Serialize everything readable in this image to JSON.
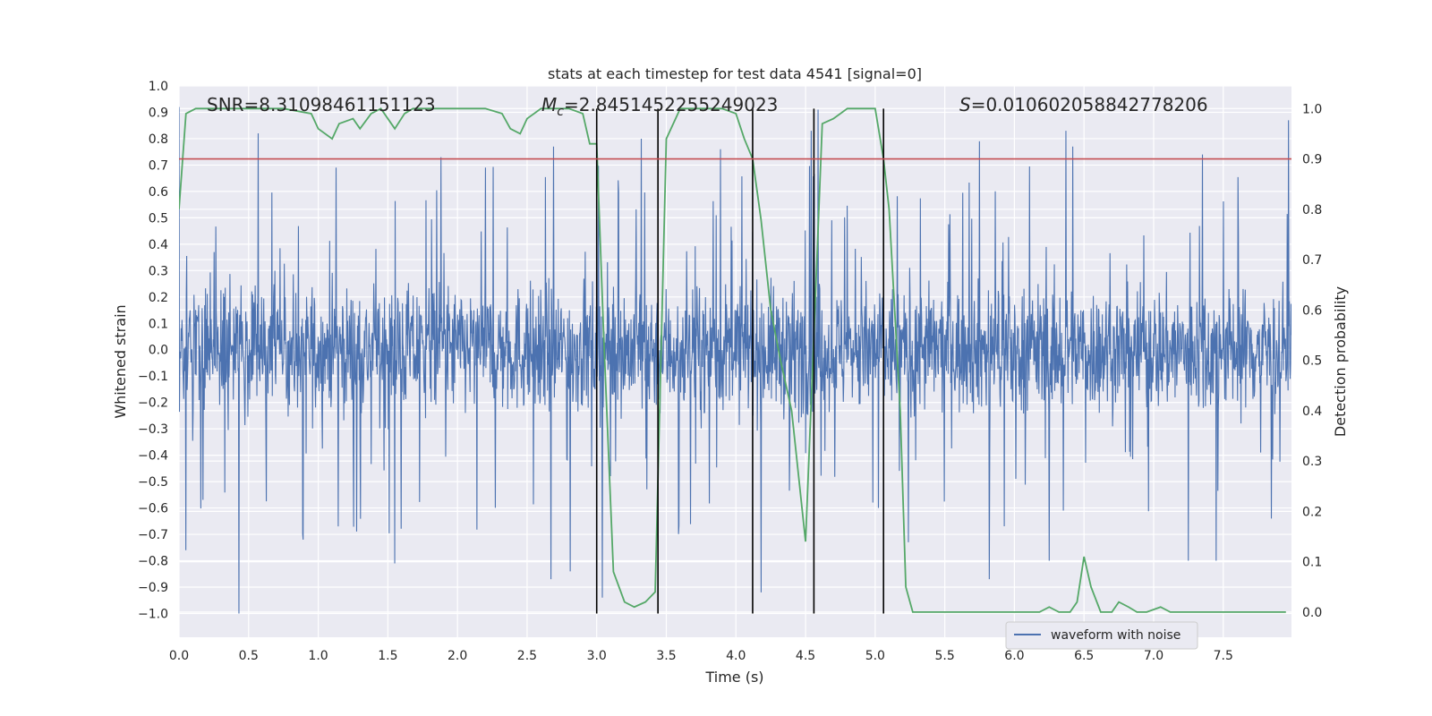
{
  "chart_data": {
    "type": "line",
    "title": "stats at each timestep for test data 4541 [signal=0]",
    "xlabel": "Time (s)",
    "ylabel_left": "Whitened strain",
    "ylabel_right": "Detection probability",
    "xlim": [
      0,
      7.99
    ],
    "ylim_left": [
      -1.09,
      1.0
    ],
    "ylim_right": [
      -0.05,
      1.045
    ],
    "xticks": [
      "0.0",
      "0.5",
      "1.0",
      "1.5",
      "2.0",
      "2.5",
      "3.0",
      "3.5",
      "4.0",
      "4.5",
      "5.0",
      "5.5",
      "6.0",
      "6.5",
      "7.0",
      "7.5"
    ],
    "xtick_values": [
      0,
      0.5,
      1,
      1.5,
      2,
      2.5,
      3,
      3.5,
      4,
      4.5,
      5,
      5.5,
      6,
      6.5,
      7,
      7.5
    ],
    "yticks_left": [
      "1.0",
      "0.9",
      "0.8",
      "0.7",
      "0.6",
      "0.5",
      "0.4",
      "0.3",
      "0.2",
      "0.1",
      "0.0",
      "−0.1",
      "−0.2",
      "−0.3",
      "−0.4",
      "−0.5",
      "−0.6",
      "−0.7",
      "−0.8",
      "−0.9",
      "−1.0"
    ],
    "ytick_values_left": [
      1.0,
      0.9,
      0.8,
      0.7,
      0.6,
      0.5,
      0.4,
      0.3,
      0.2,
      0.1,
      0.0,
      -0.1,
      -0.2,
      -0.3,
      -0.4,
      -0.5,
      -0.6,
      -0.7,
      -0.8,
      -0.9,
      -1.0
    ],
    "yticks_right": [
      "1.0",
      "0.9",
      "0.8",
      "0.7",
      "0.6",
      "0.5",
      "0.4",
      "0.3",
      "0.2",
      "0.1",
      "0.0"
    ],
    "ytick_values_right": [
      1.0,
      0.9,
      0.8,
      0.7,
      0.6,
      0.5,
      0.4,
      0.3,
      0.2,
      0.1,
      0.0
    ],
    "annotations": {
      "snr": "SNR=8.31098461151123",
      "mc_prefix": "M",
      "mc_sub": "c",
      "mc_value": "=2.8451452255249023",
      "s_prefix": "S",
      "s_value": "=0.010602058842778206"
    },
    "legend": {
      "entries": [
        "waveform with noise"
      ],
      "placement": "lower-right"
    },
    "threshold_line": {
      "value": 0.9,
      "axis": "right",
      "color": "#c44e52"
    },
    "vertical_lines": [
      3.0,
      3.44,
      4.12,
      4.56,
      5.06
    ],
    "waveform": {
      "name": "waveform with noise",
      "color": "#4c72b0",
      "samples_shown": "dense noise, approx. ±0.3 core with spikes up to ±1.0",
      "peaks_up": [
        [
          0.0,
          0.92
        ],
        [
          0.43,
          0.73
        ],
        [
          0.57,
          0.82
        ],
        [
          1.88,
          0.73
        ],
        [
          2.69,
          0.77
        ],
        [
          3.32,
          0.8
        ],
        [
          3.89,
          0.76
        ],
        [
          4.54,
          0.83
        ],
        [
          4.59,
          0.91
        ],
        [
          5.75,
          0.79
        ],
        [
          6.37,
          0.83
        ],
        [
          6.42,
          0.77
        ],
        [
          7.35,
          0.74
        ],
        [
          7.97,
          0.87
        ]
      ],
      "peaks_down": [
        [
          0.05,
          -0.76
        ],
        [
          0.43,
          -1.0
        ],
        [
          0.89,
          -0.72
        ],
        [
          1.55,
          -0.81
        ],
        [
          2.67,
          -0.87
        ],
        [
          2.81,
          -0.84
        ],
        [
          3.04,
          -0.94
        ],
        [
          4.18,
          -0.92
        ],
        [
          5.24,
          -0.73
        ],
        [
          5.82,
          -0.87
        ],
        [
          6.25,
          -0.8
        ],
        [
          7.25,
          -0.8
        ],
        [
          7.45,
          -0.8
        ]
      ]
    },
    "probability": {
      "name": "detection probability",
      "color": "#55a868",
      "x": [
        0.0,
        0.05,
        0.12,
        0.25,
        0.5,
        0.75,
        0.95,
        1.0,
        1.1,
        1.15,
        1.25,
        1.3,
        1.38,
        1.45,
        1.5,
        1.55,
        1.62,
        1.68,
        1.72,
        1.8,
        2.0,
        2.2,
        2.32,
        2.38,
        2.45,
        2.5,
        2.6,
        2.7,
        2.8,
        2.9,
        2.95,
        3.0,
        3.05,
        3.12,
        3.2,
        3.27,
        3.35,
        3.42,
        3.5,
        3.6,
        3.75,
        3.9,
        4.0,
        4.06,
        4.12,
        4.18,
        4.25,
        4.32,
        4.4,
        4.5,
        4.56,
        4.62,
        4.7,
        4.8,
        4.9,
        5.0,
        5.06,
        5.1,
        5.18,
        5.22,
        5.27,
        5.35,
        5.5,
        5.8,
        6.0,
        6.18,
        6.25,
        6.32,
        6.4,
        6.45,
        6.5,
        6.55,
        6.62,
        6.7,
        6.75,
        6.82,
        6.88,
        6.95,
        7.05,
        7.12,
        7.2,
        7.3,
        7.5,
        7.7,
        7.95
      ],
      "y": [
        0.8,
        0.99,
        1.0,
        1.0,
        1.0,
        1.0,
        0.99,
        0.96,
        0.94,
        0.97,
        0.98,
        0.96,
        0.99,
        1.0,
        0.98,
        0.96,
        0.99,
        1.0,
        1.0,
        1.0,
        1.0,
        1.0,
        0.99,
        0.96,
        0.95,
        0.98,
        1.0,
        1.0,
        1.0,
        0.99,
        0.93,
        0.93,
        0.55,
        0.08,
        0.02,
        0.01,
        0.02,
        0.04,
        0.94,
        1.0,
        1.0,
        1.0,
        0.99,
        0.94,
        0.9,
        0.78,
        0.6,
        0.5,
        0.4,
        0.14,
        0.55,
        0.97,
        0.98,
        1.0,
        1.0,
        1.0,
        0.9,
        0.8,
        0.4,
        0.05,
        0.0,
        0.0,
        0.0,
        0.0,
        0.0,
        0.0,
        0.01,
        0.0,
        0.0,
        0.02,
        0.11,
        0.05,
        0.0,
        0.0,
        0.02,
        0.01,
        0.0,
        0.0,
        0.01,
        0.0,
        0.0,
        0.0,
        0.0,
        0.0,
        0.0
      ]
    }
  }
}
